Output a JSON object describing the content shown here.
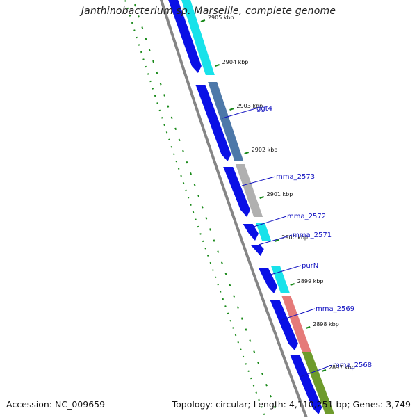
{
  "header": {
    "title": "Janthinobacterium sp. Marseille, complete genome"
  },
  "footer": {
    "accession": "Accession: NC_009659",
    "summary": "Topology: circular; Length: 4,110,251 bp; Genes: 3,749"
  },
  "ticks": [
    {
      "label": "2905 kbp",
      "pos": 2905.0
    },
    {
      "label": "2904 kbp",
      "pos": 2904.0
    },
    {
      "label": "2903 kbp",
      "pos": 2903.0
    },
    {
      "label": "2902 kbp",
      "pos": 2902.0
    },
    {
      "label": "2901 kbp",
      "pos": 2901.0
    },
    {
      "label": "2900 kbp",
      "pos": 2900.0
    },
    {
      "label": "2899 kbp",
      "pos": 2899.0
    },
    {
      "label": "2898 kbp",
      "pos": 2898.0
    },
    {
      "label": "2897 kbp",
      "pos": 2897.0
    }
  ],
  "gene_labels": [
    {
      "label": "ggt4"
    },
    {
      "label": "mma_2573"
    },
    {
      "label": "mma_2572"
    },
    {
      "label": "mma_2571"
    },
    {
      "label": "purN"
    },
    {
      "label": "mma_2569"
    },
    {
      "label": "mma_2568"
    }
  ],
  "colors": {
    "cds_blue": "#0a10e6",
    "cyan": "#18e2ea",
    "steelblue": "#4d78a9",
    "gray": "#b0b0b0",
    "salmon": "#e57a79",
    "olive": "#6e9b2c",
    "backbone": "#858585",
    "gc_green": "#1a8a1a",
    "tick_green": "#1a8a1a",
    "label_blue": "#1010c0"
  }
}
